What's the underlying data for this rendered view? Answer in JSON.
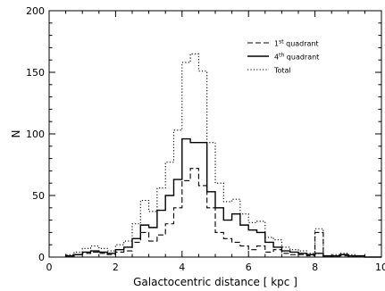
{
  "chart_data": {
    "type": "line",
    "subtype": "step-histogram",
    "xlabel": "Galactocentric distance [ kpc ]",
    "ylabel": "N",
    "xlim": [
      0,
      10
    ],
    "ylim": [
      0,
      200
    ],
    "xticks": [
      0,
      2,
      4,
      6,
      8,
      10
    ],
    "yticks": [
      0,
      50,
      100,
      150,
      200
    ],
    "bin_width": 0.25,
    "bin_edges": [
      0.5,
      0.75,
      1.0,
      1.25,
      1.5,
      1.75,
      2.0,
      2.25,
      2.5,
      2.75,
      3.0,
      3.25,
      3.5,
      3.75,
      4.0,
      4.25,
      4.5,
      4.75,
      5.0,
      5.25,
      5.5,
      5.75,
      6.0,
      6.25,
      6.5,
      6.75,
      7.0,
      7.25,
      7.5,
      7.75,
      8.0,
      8.25,
      8.5,
      8.75,
      9.0,
      9.25,
      9.5,
      9.75,
      10.0
    ],
    "legend_position": "top-right",
    "series": [
      {
        "name": "1st quadrant",
        "name_base": "1",
        "name_sup": "st",
        "name_tail": " quadrant",
        "style": "dashed",
        "values": [
          1,
          2,
          3,
          4,
          3,
          2,
          4,
          5,
          12,
          20,
          13,
          18,
          27,
          40,
          62,
          72,
          58,
          40,
          20,
          15,
          12,
          9,
          6,
          9,
          4,
          6,
          3,
          2,
          2,
          1,
          20,
          0,
          1,
          1,
          1,
          0,
          0,
          0
        ]
      },
      {
        "name": "4th quadrant",
        "name_base": "4",
        "name_sup": "th",
        "name_tail": " quadrant",
        "style": "solid",
        "values": [
          1,
          2,
          4,
          5,
          4,
          3,
          6,
          8,
          15,
          26,
          24,
          38,
          50,
          63,
          96,
          93,
          93,
          53,
          40,
          30,
          35,
          26,
          22,
          20,
          12,
          8,
          5,
          4,
          3,
          2,
          3,
          1,
          1,
          2,
          1,
          1,
          0,
          0
        ]
      },
      {
        "name": "Total",
        "name_base": "Total",
        "name_sup": "",
        "name_tail": "",
        "style": "dotted",
        "values": [
          2,
          4,
          7,
          9,
          7,
          5,
          10,
          13,
          27,
          46,
          37,
          56,
          77,
          103,
          158,
          165,
          151,
          93,
          60,
          45,
          47,
          35,
          28,
          29,
          16,
          14,
          8,
          6,
          5,
          3,
          23,
          1,
          2,
          3,
          2,
          1,
          0,
          0
        ]
      }
    ]
  }
}
